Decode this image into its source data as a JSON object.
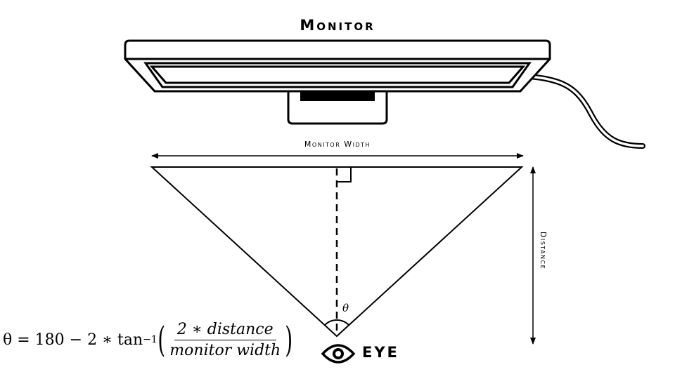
{
  "title": "Monitor",
  "width_label": "Monitor Width",
  "distance_label": "Distance",
  "angle_label": "θ",
  "eye_label": "EYE",
  "formula": {
    "lhs": "θ = 180 − 2 ∗ tan",
    "exponent": "−1",
    "numerator": "2 ∗ distance",
    "denominator": "monitor width"
  }
}
